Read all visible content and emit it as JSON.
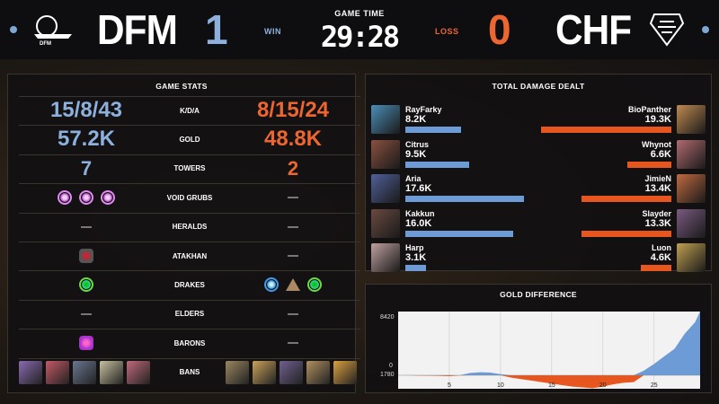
{
  "header": {
    "left_team": "DFM",
    "left_score": "1",
    "left_result": "WIN",
    "right_team": "CHF",
    "right_score": "0",
    "right_result": "LOSS",
    "game_time_label": "GAME TIME",
    "game_time": "29:28",
    "left_color": "#8db1dc",
    "right_color": "#ec6632"
  },
  "stats": {
    "title": "GAME STATS",
    "rows": [
      {
        "label": "K/D/A",
        "left": "15/8/43",
        "right": "8/15/24"
      },
      {
        "label": "GOLD",
        "left": "57.2K",
        "right": "48.8K"
      },
      {
        "label": "TOWERS",
        "left": "7",
        "right": "2"
      },
      {
        "label": "VOID GRUBS",
        "left_icons": [
          "void-grub-icon",
          "void-grub-icon",
          "void-grub-icon"
        ],
        "right": "—"
      },
      {
        "label": "HERALDS",
        "left": "—",
        "right": "—"
      },
      {
        "label": "ATAKHAN",
        "left_icons": [
          "atakhan-icon"
        ],
        "right": "—"
      },
      {
        "label": "DRAKES",
        "left_icons": [
          "chemtech-drake-icon"
        ],
        "right_icons": [
          "ocean-drake-icon",
          "mountain-drake-icon",
          "chemtech-drake-icon"
        ]
      },
      {
        "label": "ELDERS",
        "left": "—",
        "right": "—"
      },
      {
        "label": "BARONS",
        "left_icons": [
          "baron-icon"
        ],
        "right": "—"
      },
      {
        "label": "BANS",
        "left_bans": 5,
        "right_bans": 5
      }
    ]
  },
  "damage": {
    "title": "TOTAL DAMAGE DEALT",
    "left": [
      {
        "name": "RayFarky",
        "value": "8.2K",
        "raw": 8.2
      },
      {
        "name": "Citrus",
        "value": "9.5K",
        "raw": 9.5
      },
      {
        "name": "Aria",
        "value": "17.6K",
        "raw": 17.6
      },
      {
        "name": "Kakkun",
        "value": "16.0K",
        "raw": 16.0
      },
      {
        "name": "Harp",
        "value": "3.1K",
        "raw": 3.1
      }
    ],
    "right": [
      {
        "name": "BioPanther",
        "value": "19.3K",
        "raw": 19.3
      },
      {
        "name": "Whynot",
        "value": "6.6K",
        "raw": 6.6
      },
      {
        "name": "JimieN",
        "value": "13.4K",
        "raw": 13.4
      },
      {
        "name": "Slayder",
        "value": "13.3K",
        "raw": 13.3
      },
      {
        "name": "Luon",
        "value": "4.6K",
        "raw": 4.6
      }
    ]
  },
  "gold_diff": {
    "title": "GOLD DIFFERENCE",
    "y_top": "8420",
    "y_zero": "0",
    "y_bottom": "1780",
    "x_ticks": [
      "5",
      "10",
      "15",
      "20",
      "25"
    ]
  },
  "chart_data": {
    "type": "area",
    "title": "GOLD DIFFERENCE",
    "x": [
      0,
      1,
      2,
      3,
      4,
      5,
      6,
      7,
      8,
      9,
      10,
      11,
      12,
      13,
      14,
      15,
      16,
      17,
      18,
      19,
      20,
      21,
      22,
      23,
      24,
      25,
      26,
      27,
      28,
      29,
      29.5
    ],
    "y": [
      0,
      20,
      -40,
      -60,
      -80,
      -120,
      -30,
      300,
      400,
      350,
      150,
      -300,
      -500,
      -700,
      -900,
      -1100,
      -1300,
      -1500,
      -1600,
      -1700,
      -1500,
      -1200,
      -1000,
      -900,
      600,
      1500,
      2500,
      3500,
      5500,
      7000,
      8420
    ],
    "ylim": [
      -1780,
      8420
    ],
    "xlim": [
      0,
      29.5
    ],
    "positive_color": "#6d9bd6",
    "negative_color": "#e8561f"
  }
}
